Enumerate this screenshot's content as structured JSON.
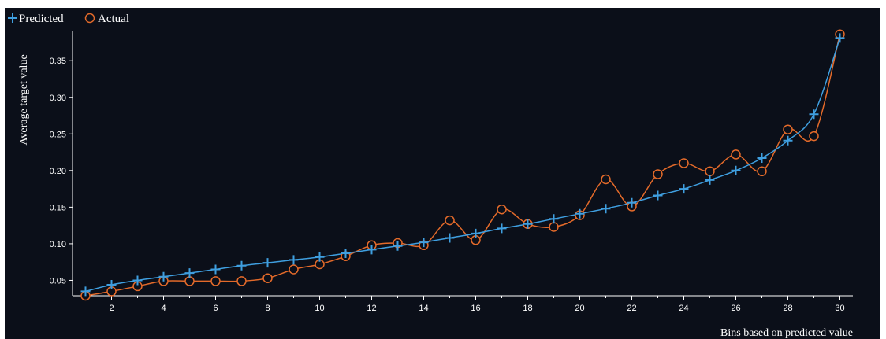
{
  "colors": {
    "background": "#0b0f19",
    "predicted": "#3f9fe0",
    "actual": "#e36a2a",
    "axis": "#ffffff",
    "text": "#ffffff"
  },
  "chart_data": {
    "type": "line",
    "title": "",
    "xlabel": "Bins based on predicted value",
    "ylabel": "Average target value",
    "xlim": [
      0.5,
      30.5
    ],
    "ylim": [
      0.029,
      0.39
    ],
    "x_ticks": [
      2,
      4,
      6,
      8,
      10,
      12,
      14,
      16,
      18,
      20,
      22,
      24,
      26,
      28,
      30
    ],
    "y_ticks": [
      0.05,
      0.1,
      0.15,
      0.2,
      0.25,
      0.3,
      0.35
    ],
    "y_tick_labels": [
      "0.05",
      "0.10",
      "0.15",
      "0.20",
      "0.25",
      "0.30",
      "0.35"
    ],
    "grid": false,
    "legend_position": "top-left",
    "x": [
      1,
      2,
      3,
      4,
      5,
      6,
      7,
      8,
      9,
      10,
      11,
      12,
      13,
      14,
      15,
      16,
      17,
      18,
      19,
      20,
      21,
      22,
      23,
      24,
      25,
      26,
      27,
      28,
      29,
      30
    ],
    "series": [
      {
        "name": "Predicted",
        "marker": "plus",
        "values": [
          0.035,
          0.044,
          0.05,
          0.055,
          0.06,
          0.065,
          0.07,
          0.074,
          0.078,
          0.082,
          0.087,
          0.092,
          0.097,
          0.102,
          0.108,
          0.114,
          0.121,
          0.127,
          0.134,
          0.141,
          0.148,
          0.156,
          0.166,
          0.175,
          0.187,
          0.2,
          0.217,
          0.241,
          0.277,
          0.381
        ]
      },
      {
        "name": "Actual",
        "marker": "circle",
        "values": [
          0.029,
          0.035,
          0.042,
          0.049,
          0.049,
          0.049,
          0.049,
          0.053,
          0.065,
          0.072,
          0.083,
          0.098,
          0.101,
          0.098,
          0.132,
          0.105,
          0.147,
          0.127,
          0.123,
          0.139,
          0.188,
          0.151,
          0.195,
          0.21,
          0.199,
          0.222,
          0.199,
          0.256,
          0.247,
          0.386
        ]
      }
    ]
  }
}
